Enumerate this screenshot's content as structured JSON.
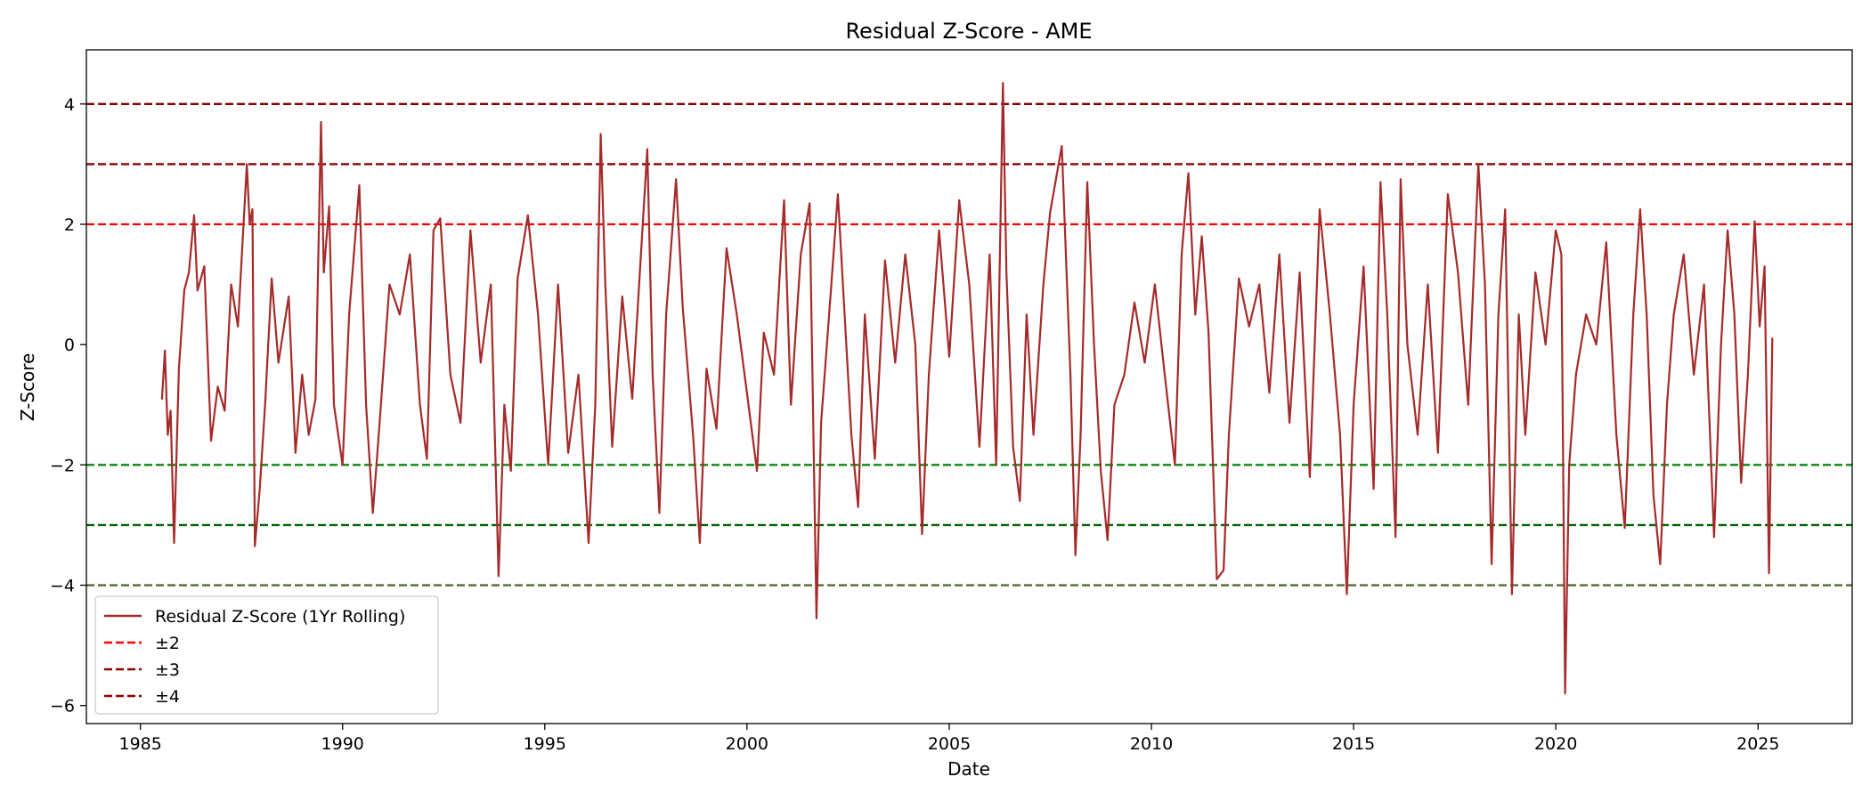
{
  "chart_data": {
    "type": "line",
    "title": "Residual Z-Score - AME",
    "xlabel": "Date",
    "ylabel": "Z-Score",
    "xlim": [
      "1983-09-01",
      "2027-05-01"
    ],
    "ylim": [
      -6.3,
      4.9
    ],
    "x_ticks": [
      {
        "label": "1985",
        "date": "1985-01-01"
      },
      {
        "label": "1990",
        "date": "1990-01-01"
      },
      {
        "label": "1995",
        "date": "1995-01-01"
      },
      {
        "label": "2000",
        "date": "2000-01-01"
      },
      {
        "label": "2005",
        "date": "2005-01-01"
      },
      {
        "label": "2010",
        "date": "2010-01-01"
      },
      {
        "label": "2015",
        "date": "2015-01-01"
      },
      {
        "label": "2020",
        "date": "2020-01-01"
      },
      {
        "label": "2025",
        "date": "2025-01-01"
      }
    ],
    "y_ticks": [
      {
        "label": "4",
        "value": 4
      },
      {
        "label": "2",
        "value": 2
      },
      {
        "label": "0",
        "value": 0
      },
      {
        "label": "−2",
        "value": -2
      },
      {
        "label": "−4",
        "value": -4
      },
      {
        "label": "−6",
        "value": -6
      }
    ],
    "grid": false,
    "legend_placement": "lower-left",
    "series": [
      {
        "name": "Residual Z-Score (1Yr Rolling)",
        "color": "#a52a2a",
        "style": "solid",
        "points": [
          [
            "1985-07-15",
            -0.9
          ],
          [
            "1985-08-10",
            -0.1
          ],
          [
            "1985-09-05",
            -1.5
          ],
          [
            "1985-10-01",
            -1.1
          ],
          [
            "1985-11-01",
            -3.3
          ],
          [
            "1985-12-15",
            -0.4
          ],
          [
            "1986-02-01",
            0.9
          ],
          [
            "1986-03-15",
            1.2
          ],
          [
            "1986-05-01",
            2.15
          ],
          [
            "1986-06-01",
            0.9
          ],
          [
            "1986-08-01",
            1.3
          ],
          [
            "1986-10-01",
            -1.6
          ],
          [
            "1986-12-01",
            -0.7
          ],
          [
            "1987-02-01",
            -1.1
          ],
          [
            "1987-04-01",
            1.0
          ],
          [
            "1987-06-01",
            0.3
          ],
          [
            "1987-08-20",
            3.0
          ],
          [
            "1987-09-15",
            2.0
          ],
          [
            "1987-10-10",
            2.25
          ],
          [
            "1987-11-01",
            -3.35
          ],
          [
            "1987-12-15",
            -2.4
          ],
          [
            "1988-02-01",
            -1.0
          ],
          [
            "1988-04-01",
            1.1
          ],
          [
            "1988-06-01",
            -0.3
          ],
          [
            "1988-09-01",
            0.8
          ],
          [
            "1988-11-01",
            -1.8
          ],
          [
            "1989-01-01",
            -0.5
          ],
          [
            "1989-03-01",
            -1.5
          ],
          [
            "1989-05-01",
            -0.9
          ],
          [
            "1989-06-20",
            3.7
          ],
          [
            "1989-07-15",
            1.2
          ],
          [
            "1989-09-01",
            2.3
          ],
          [
            "1989-10-15",
            -1.0
          ],
          [
            "1990-01-01",
            -2.0
          ],
          [
            "1990-03-01",
            0.5
          ],
          [
            "1990-06-01",
            2.65
          ],
          [
            "1990-08-01",
            -1.0
          ],
          [
            "1990-10-01",
            -2.8
          ],
          [
            "1990-12-01",
            -1.3
          ],
          [
            "1991-03-01",
            1.0
          ],
          [
            "1991-06-01",
            0.5
          ],
          [
            "1991-09-01",
            1.5
          ],
          [
            "1991-12-01",
            -1.0
          ],
          [
            "1992-02-01",
            -1.9
          ],
          [
            "1992-04-01",
            1.9
          ],
          [
            "1992-06-01",
            2.1
          ],
          [
            "1992-09-01",
            -0.5
          ],
          [
            "1992-12-01",
            -1.3
          ],
          [
            "1993-03-01",
            1.9
          ],
          [
            "1993-06-01",
            -0.3
          ],
          [
            "1993-09-01",
            1.0
          ],
          [
            "1993-11-10",
            -3.85
          ],
          [
            "1994-01-01",
            -1.0
          ],
          [
            "1994-03-01",
            -2.1
          ],
          [
            "1994-05-01",
            1.1
          ],
          [
            "1994-08-01",
            2.15
          ],
          [
            "1994-11-01",
            0.5
          ],
          [
            "1995-02-01",
            -2.0
          ],
          [
            "1995-05-01",
            1.0
          ],
          [
            "1995-08-01",
            -1.8
          ],
          [
            "1995-11-01",
            -0.5
          ],
          [
            "1996-02-01",
            -3.3
          ],
          [
            "1996-04-01",
            -1.0
          ],
          [
            "1996-05-20",
            3.5
          ],
          [
            "1996-07-01",
            1.0
          ],
          [
            "1996-09-01",
            -1.7
          ],
          [
            "1996-12-01",
            0.8
          ],
          [
            "1997-03-01",
            -0.9
          ],
          [
            "1997-06-01",
            1.9
          ],
          [
            "1997-07-15",
            3.25
          ],
          [
            "1997-09-01",
            -0.5
          ],
          [
            "1997-11-01",
            -2.8
          ],
          [
            "1998-01-01",
            0.5
          ],
          [
            "1998-04-01",
            2.75
          ],
          [
            "1998-06-01",
            0.6
          ],
          [
            "1998-09-01",
            -1.5
          ],
          [
            "1998-11-01",
            -3.3
          ],
          [
            "1999-01-01",
            -0.4
          ],
          [
            "1999-04-01",
            -1.4
          ],
          [
            "1999-07-01",
            1.6
          ],
          [
            "1999-10-01",
            0.5
          ],
          [
            "2000-01-01",
            -0.8
          ],
          [
            "2000-04-01",
            -2.1
          ],
          [
            "2000-06-01",
            0.2
          ],
          [
            "2000-09-01",
            -0.5
          ],
          [
            "2000-12-01",
            2.4
          ],
          [
            "2001-02-01",
            -1.0
          ],
          [
            "2001-05-01",
            1.5
          ],
          [
            "2001-07-20",
            2.35
          ],
          [
            "2001-09-20",
            -4.55
          ],
          [
            "2001-11-01",
            -1.3
          ],
          [
            "2002-02-01",
            1.0
          ],
          [
            "2002-04-01",
            2.5
          ],
          [
            "2002-06-01",
            0.5
          ],
          [
            "2002-08-01",
            -1.5
          ],
          [
            "2002-10-01",
            -2.7
          ],
          [
            "2002-12-01",
            0.5
          ],
          [
            "2003-03-01",
            -1.9
          ],
          [
            "2003-06-01",
            1.4
          ],
          [
            "2003-09-01",
            -0.3
          ],
          [
            "2003-12-01",
            1.5
          ],
          [
            "2004-03-01",
            0.0
          ],
          [
            "2004-05-01",
            -3.15
          ],
          [
            "2004-07-01",
            -0.5
          ],
          [
            "2004-10-01",
            1.9
          ],
          [
            "2005-01-01",
            -0.2
          ],
          [
            "2005-04-01",
            2.4
          ],
          [
            "2005-07-01",
            1.0
          ],
          [
            "2005-10-01",
            -1.7
          ],
          [
            "2006-01-01",
            1.5
          ],
          [
            "2006-03-01",
            -2.0
          ],
          [
            "2006-05-01",
            4.35
          ],
          [
            "2006-06-01",
            1.2
          ],
          [
            "2006-08-01",
            -1.7
          ],
          [
            "2006-10-01",
            -2.6
          ],
          [
            "2006-12-01",
            0.5
          ],
          [
            "2007-02-01",
            -1.5
          ],
          [
            "2007-05-01",
            1.0
          ],
          [
            "2007-07-01",
            2.2
          ],
          [
            "2007-10-15",
            3.3
          ],
          [
            "2008-01-01",
            -0.5
          ],
          [
            "2008-02-15",
            -3.5
          ],
          [
            "2008-04-01",
            -1.5
          ],
          [
            "2008-06-01",
            2.7
          ],
          [
            "2008-08-01",
            0.0
          ],
          [
            "2008-10-01",
            -2.1
          ],
          [
            "2008-12-01",
            -3.25
          ],
          [
            "2009-02-01",
            -1.0
          ],
          [
            "2009-05-01",
            -0.5
          ],
          [
            "2009-08-01",
            0.7
          ],
          [
            "2009-11-01",
            -0.3
          ],
          [
            "2010-02-01",
            1.0
          ],
          [
            "2010-05-01",
            -0.5
          ],
          [
            "2010-08-01",
            -2.0
          ],
          [
            "2010-10-01",
            1.5
          ],
          [
            "2010-12-01",
            2.85
          ],
          [
            "2011-02-01",
            0.5
          ],
          [
            "2011-04-01",
            1.8
          ],
          [
            "2011-06-01",
            0.2
          ],
          [
            "2011-08-15",
            -3.9
          ],
          [
            "2011-10-15",
            -3.75
          ],
          [
            "2011-12-01",
            -1.5
          ],
          [
            "2012-03-01",
            1.1
          ],
          [
            "2012-06-01",
            0.3
          ],
          [
            "2012-09-01",
            1.0
          ],
          [
            "2012-12-01",
            -0.8
          ],
          [
            "2013-03-01",
            1.5
          ],
          [
            "2013-06-01",
            -1.3
          ],
          [
            "2013-09-01",
            1.2
          ],
          [
            "2013-12-01",
            -2.2
          ],
          [
            "2014-03-01",
            2.25
          ],
          [
            "2014-06-01",
            0.5
          ],
          [
            "2014-09-01",
            -1.5
          ],
          [
            "2014-11-01",
            -4.15
          ],
          [
            "2015-01-01",
            -1.0
          ],
          [
            "2015-04-01",
            1.3
          ],
          [
            "2015-07-01",
            -2.4
          ],
          [
            "2015-09-01",
            2.7
          ],
          [
            "2015-11-01",
            0.5
          ],
          [
            "2016-01-15",
            -3.2
          ],
          [
            "2016-03-01",
            2.75
          ],
          [
            "2016-05-01",
            0.0
          ],
          [
            "2016-08-01",
            -1.5
          ],
          [
            "2016-11-01",
            1.0
          ],
          [
            "2017-02-01",
            -1.8
          ],
          [
            "2017-05-01",
            2.5
          ],
          [
            "2017-08-01",
            1.2
          ],
          [
            "2017-11-01",
            -1.0
          ],
          [
            "2018-02-01",
            3.0
          ],
          [
            "2018-04-01",
            1.0
          ],
          [
            "2018-06-01",
            -3.65
          ],
          [
            "2018-08-01",
            0.5
          ],
          [
            "2018-10-01",
            2.25
          ],
          [
            "2018-12-01",
            -4.15
          ],
          [
            "2019-02-01",
            0.5
          ],
          [
            "2019-04-01",
            -1.5
          ],
          [
            "2019-07-01",
            1.2
          ],
          [
            "2019-10-01",
            0.0
          ],
          [
            "2020-01-01",
            1.9
          ],
          [
            "2020-02-20",
            1.5
          ],
          [
            "2020-03-25",
            -5.8
          ],
          [
            "2020-05-01",
            -2.0
          ],
          [
            "2020-07-01",
            -0.5
          ],
          [
            "2020-10-01",
            0.5
          ],
          [
            "2021-01-01",
            0.0
          ],
          [
            "2021-04-01",
            1.7
          ],
          [
            "2021-07-01",
            -1.5
          ],
          [
            "2021-09-15",
            -3.05
          ],
          [
            "2021-12-01",
            0.5
          ],
          [
            "2022-02-01",
            2.25
          ],
          [
            "2022-04-01",
            0.5
          ],
          [
            "2022-06-01",
            -2.5
          ],
          [
            "2022-08-01",
            -3.65
          ],
          [
            "2022-10-01",
            -1.0
          ],
          [
            "2022-12-01",
            0.5
          ],
          [
            "2023-03-01",
            1.5
          ],
          [
            "2023-06-01",
            -0.5
          ],
          [
            "2023-09-01",
            1.0
          ],
          [
            "2023-12-01",
            -3.2
          ],
          [
            "2024-02-01",
            0.0
          ],
          [
            "2024-04-01",
            1.9
          ],
          [
            "2024-06-01",
            0.5
          ],
          [
            "2024-08-01",
            -2.3
          ],
          [
            "2024-10-01",
            -0.5
          ],
          [
            "2024-12-01",
            2.05
          ],
          [
            "2025-01-15",
            0.3
          ],
          [
            "2025-03-01",
            1.3
          ],
          [
            "2025-04-10",
            -3.8
          ],
          [
            "2025-05-10",
            0.1
          ]
        ]
      },
      {
        "name": "±2",
        "color": "#ff0000",
        "style": "dashed",
        "levels": [
          2
        ]
      },
      {
        "name": "±3",
        "color": "#8b0000",
        "style": "dashed",
        "levels": [
          3,
          4
        ]
      },
      {
        "name": "±4",
        "color": "#8b0000",
        "style": "dashed",
        "levels": []
      }
    ],
    "lower_reference_lines": [
      {
        "value": -2,
        "color": "#008000"
      },
      {
        "value": -3,
        "color": "#006400"
      },
      {
        "value": -4,
        "color": "#556b2f"
      }
    ]
  }
}
